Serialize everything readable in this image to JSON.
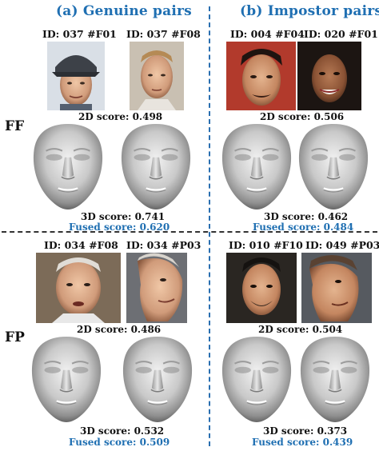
{
  "headers": {
    "genuine": "(a) Genuine pairs",
    "impostor": "(b) Impostor pairs"
  },
  "rows": {
    "ff": "FF",
    "fp": "FP"
  },
  "panels": {
    "ff_genuine": {
      "id_left": "ID: 037 #F01",
      "id_right": "ID: 037 #F08",
      "score_2d": "2D score: 0.498",
      "score_3d": "3D score: 0.741",
      "fused": "Fused score: 0.620"
    },
    "ff_impostor": {
      "id_left": "ID: 004 #F04",
      "id_right": "ID: 020 #F01",
      "score_2d": "2D score: 0.506",
      "score_3d": "3D score: 0.462",
      "fused": "Fused score: 0.484"
    },
    "fp_genuine": {
      "id_left": "ID: 034 #F08",
      "id_right": "ID: 034 #P03",
      "score_2d": "2D score: 0.486",
      "score_3d": "3D score: 0.532",
      "fused": "Fused score: 0.509"
    },
    "fp_impostor": {
      "id_left": "ID: 010 #F10",
      "id_right": "ID: 049 #P03",
      "score_2d": "2D score: 0.504",
      "score_3d": "3D score: 0.373",
      "fused": "Fused score: 0.439"
    }
  },
  "colors": {
    "accent": "#1f6fb2",
    "text": "#111111"
  }
}
